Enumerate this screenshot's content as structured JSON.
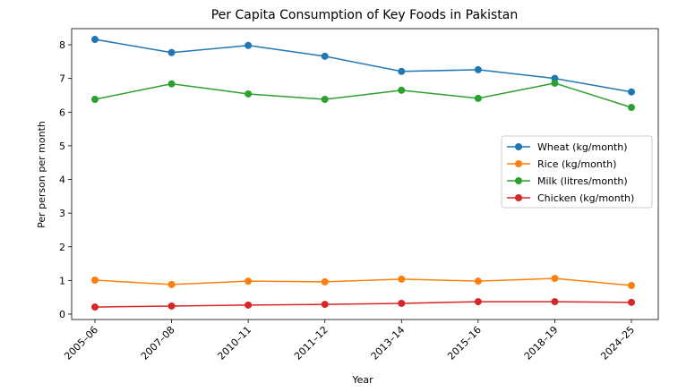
{
  "chart_data": {
    "type": "line",
    "title": "Per Capita Consumption of Key Foods in Pakistan",
    "xlabel": "Year",
    "ylabel": "Per person per month",
    "categories": [
      "2005–06",
      "2007–08",
      "2010–11",
      "2011–12",
      "2013–14",
      "2015–16",
      "2018–19",
      "2024–25"
    ],
    "ylim": [
      -0.16,
      8.48
    ],
    "yticks": [
      0,
      1,
      2,
      3,
      4,
      5,
      6,
      7,
      8
    ],
    "grid": false,
    "legend_position": "center-right",
    "series": [
      {
        "name": "Wheat (kg/month)",
        "color": "#1f77b4",
        "values": [
          8.16,
          7.77,
          7.98,
          7.66,
          7.21,
          7.26,
          7.0,
          6.6
        ]
      },
      {
        "name": "Rice (kg/month)",
        "color": "#ff7f0e",
        "values": [
          1.01,
          0.88,
          0.98,
          0.96,
          1.04,
          0.98,
          1.06,
          0.85
        ]
      },
      {
        "name": "Milk (litres/month)",
        "color": "#2ca02c",
        "values": [
          6.38,
          6.84,
          6.54,
          6.38,
          6.65,
          6.41,
          6.86,
          6.14
        ]
      },
      {
        "name": "Chicken (kg/month)",
        "color": "#d62728",
        "values": [
          0.21,
          0.24,
          0.27,
          0.29,
          0.32,
          0.37,
          0.37,
          0.35
        ]
      }
    ]
  }
}
